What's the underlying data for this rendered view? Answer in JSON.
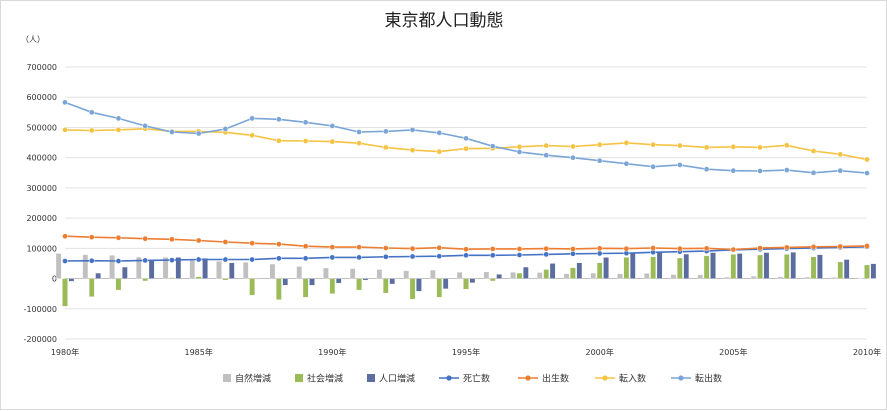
{
  "chart_data": {
    "type": "bar",
    "title": "東京都人口動態",
    "ylabel": "（人）",
    "ylim": [
      -200000,
      700000
    ],
    "y_ticks": [
      "700000",
      "600000",
      "500000",
      "400000",
      "300000",
      "200000",
      "100000",
      "0",
      "-100000",
      "-200000"
    ],
    "y_tick_values": [
      700000,
      600000,
      500000,
      400000,
      300000,
      200000,
      100000,
      0,
      -100000,
      -200000
    ],
    "x": [
      1980,
      1981,
      1982,
      1983,
      1984,
      1985,
      1986,
      1987,
      1988,
      1989,
      1990,
      1991,
      1992,
      1993,
      1994,
      1995,
      1996,
      1997,
      1998,
      1999,
      2000,
      2001,
      2002,
      2003,
      2004,
      2005,
      2006,
      2007,
      2008,
      2009,
      2010
    ],
    "x_tick_labels": [
      {
        "year": 1980,
        "label": "1980年"
      },
      {
        "year": 1985,
        "label": "1985年"
      },
      {
        "year": 1990,
        "label": "1990年"
      },
      {
        "year": 1995,
        "label": "1995年"
      },
      {
        "year": 2000,
        "label": "2000年"
      },
      {
        "year": 2005,
        "label": "2005年"
      },
      {
        "year": 2010,
        "label": "2010年"
      }
    ],
    "grid": true,
    "legend_position": "bottom",
    "series": [
      {
        "name": "自然増減",
        "kind": "bar",
        "color": "#c0c0c0",
        "values": [
          83000,
          79000,
          77000,
          71000,
          70000,
          63000,
          57000,
          54000,
          48000,
          40000,
          35000,
          33000,
          30000,
          26000,
          28000,
          21000,
          22000,
          21000,
          20000,
          16000,
          18000,
          16000,
          17000,
          13000,
          12000,
          5000,
          8000,
          6000,
          5000,
          4000,
          2000
        ]
      },
      {
        "name": "社会増減",
        "kind": "bar",
        "color": "#9bbb59",
        "values": [
          -92000,
          -60000,
          -38000,
          -8000,
          3000,
          6000,
          -5000,
          -55000,
          -70000,
          -62000,
          -50000,
          -38000,
          -48000,
          -68000,
          -62000,
          -35000,
          -8000,
          18000,
          30000,
          36000,
          52000,
          70000,
          72000,
          68000,
          75000,
          80000,
          78000,
          80000,
          72000,
          55000,
          45000
        ]
      },
      {
        "name": "人口増減",
        "kind": "bar",
        "color": "#5b6d9e",
        "values": [
          -9000,
          18000,
          38000,
          62000,
          70000,
          67000,
          52000,
          -1000,
          -22000,
          -22000,
          -15000,
          -5000,
          -18000,
          -42000,
          -34000,
          -14000,
          14000,
          38000,
          50000,
          52000,
          70000,
          84000,
          87000,
          81000,
          86000,
          83000,
          86000,
          87000,
          79000,
          63000,
          49000
        ]
      },
      {
        "name": "死亡数",
        "kind": "line",
        "color": "#4472c4",
        "values": [
          58000,
          59000,
          58000,
          60000,
          61000,
          63000,
          63000,
          63000,
          67000,
          67000,
          70000,
          70000,
          72000,
          73000,
          74000,
          77000,
          77000,
          78000,
          80000,
          82000,
          83000,
          84000,
          87000,
          89000,
          91000,
          95000,
          97000,
          99000,
          101000,
          103000,
          105000
        ]
      },
      {
        "name": "出生数",
        "kind": "line",
        "color": "#ed7d31",
        "values": [
          140000,
          137000,
          135000,
          132000,
          130000,
          126000,
          121000,
          117000,
          114000,
          107000,
          104000,
          104000,
          101000,
          99000,
          102000,
          97000,
          98000,
          98000,
          99000,
          98000,
          100000,
          99000,
          101000,
          99000,
          100000,
          96000,
          101000,
          103000,
          105000,
          106000,
          108000
        ]
      },
      {
        "name": "転入数",
        "kind": "line",
        "color": "#f5c242",
        "values": [
          492000,
          490000,
          492000,
          496000,
          487000,
          487000,
          484000,
          474000,
          456000,
          455000,
          453000,
          448000,
          434000,
          425000,
          420000,
          430000,
          431000,
          436000,
          440000,
          437000,
          443000,
          449000,
          443000,
          440000,
          434000,
          436000,
          434000,
          441000,
          422000,
          411000,
          394000
        ]
      },
      {
        "name": "転出数",
        "kind": "line",
        "color": "#7aa5d6",
        "values": [
          583000,
          550000,
          530000,
          505000,
          485000,
          480000,
          495000,
          530000,
          527000,
          517000,
          505000,
          485000,
          487000,
          492000,
          482000,
          464000,
          438000,
          419000,
          408000,
          400000,
          390000,
          380000,
          370000,
          376000,
          362000,
          357000,
          356000,
          359000,
          350000,
          357000,
          349000
        ]
      }
    ]
  }
}
